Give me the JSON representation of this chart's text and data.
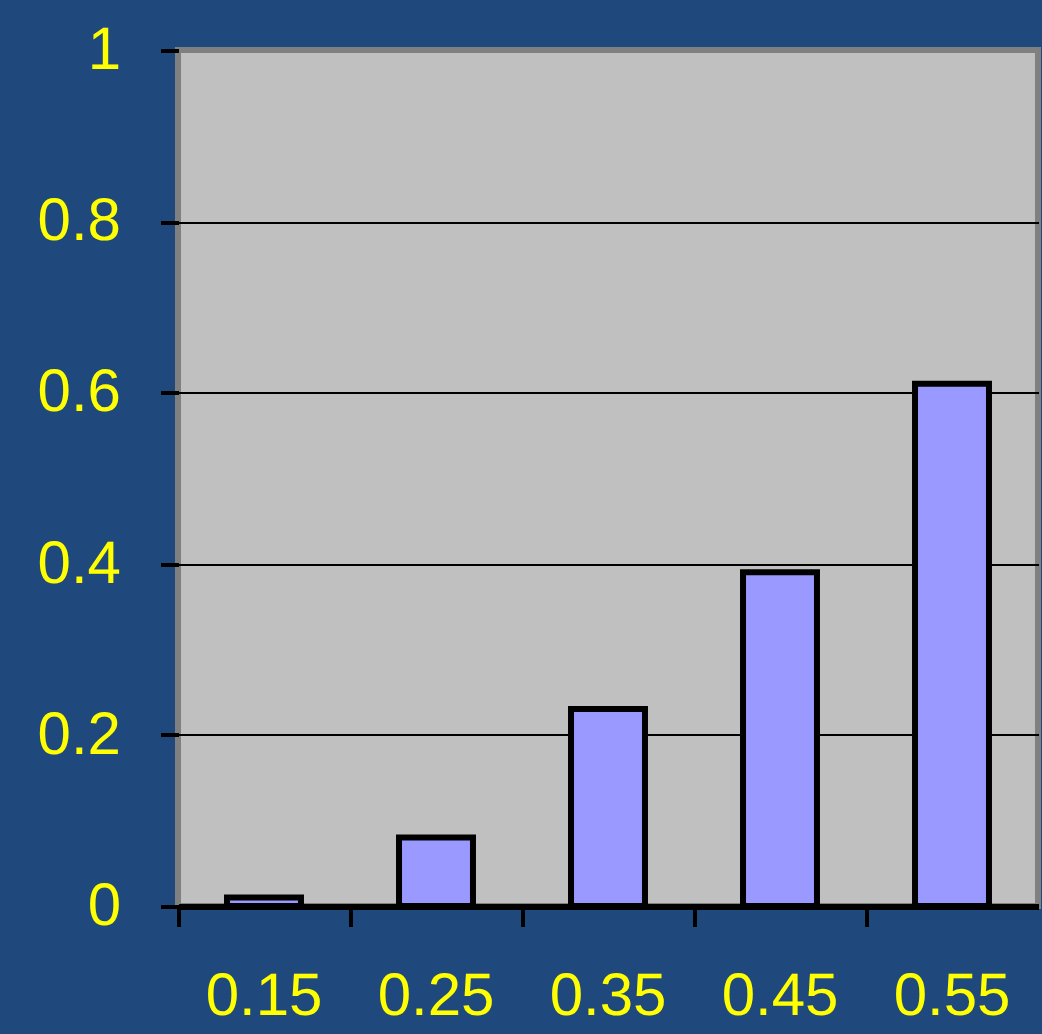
{
  "chart_data": {
    "type": "bar",
    "categories": [
      "0.15",
      "0.25",
      "0.35",
      "0.45",
      "0.55"
    ],
    "values": [
      0.01,
      0.08,
      0.23,
      0.39,
      0.61
    ],
    "color": "#9999ff",
    "ylim": [
      0,
      1
    ],
    "yticks": [
      0,
      0.2,
      0.4,
      0.6,
      0.8,
      1
    ],
    "grid": "y"
  }
}
